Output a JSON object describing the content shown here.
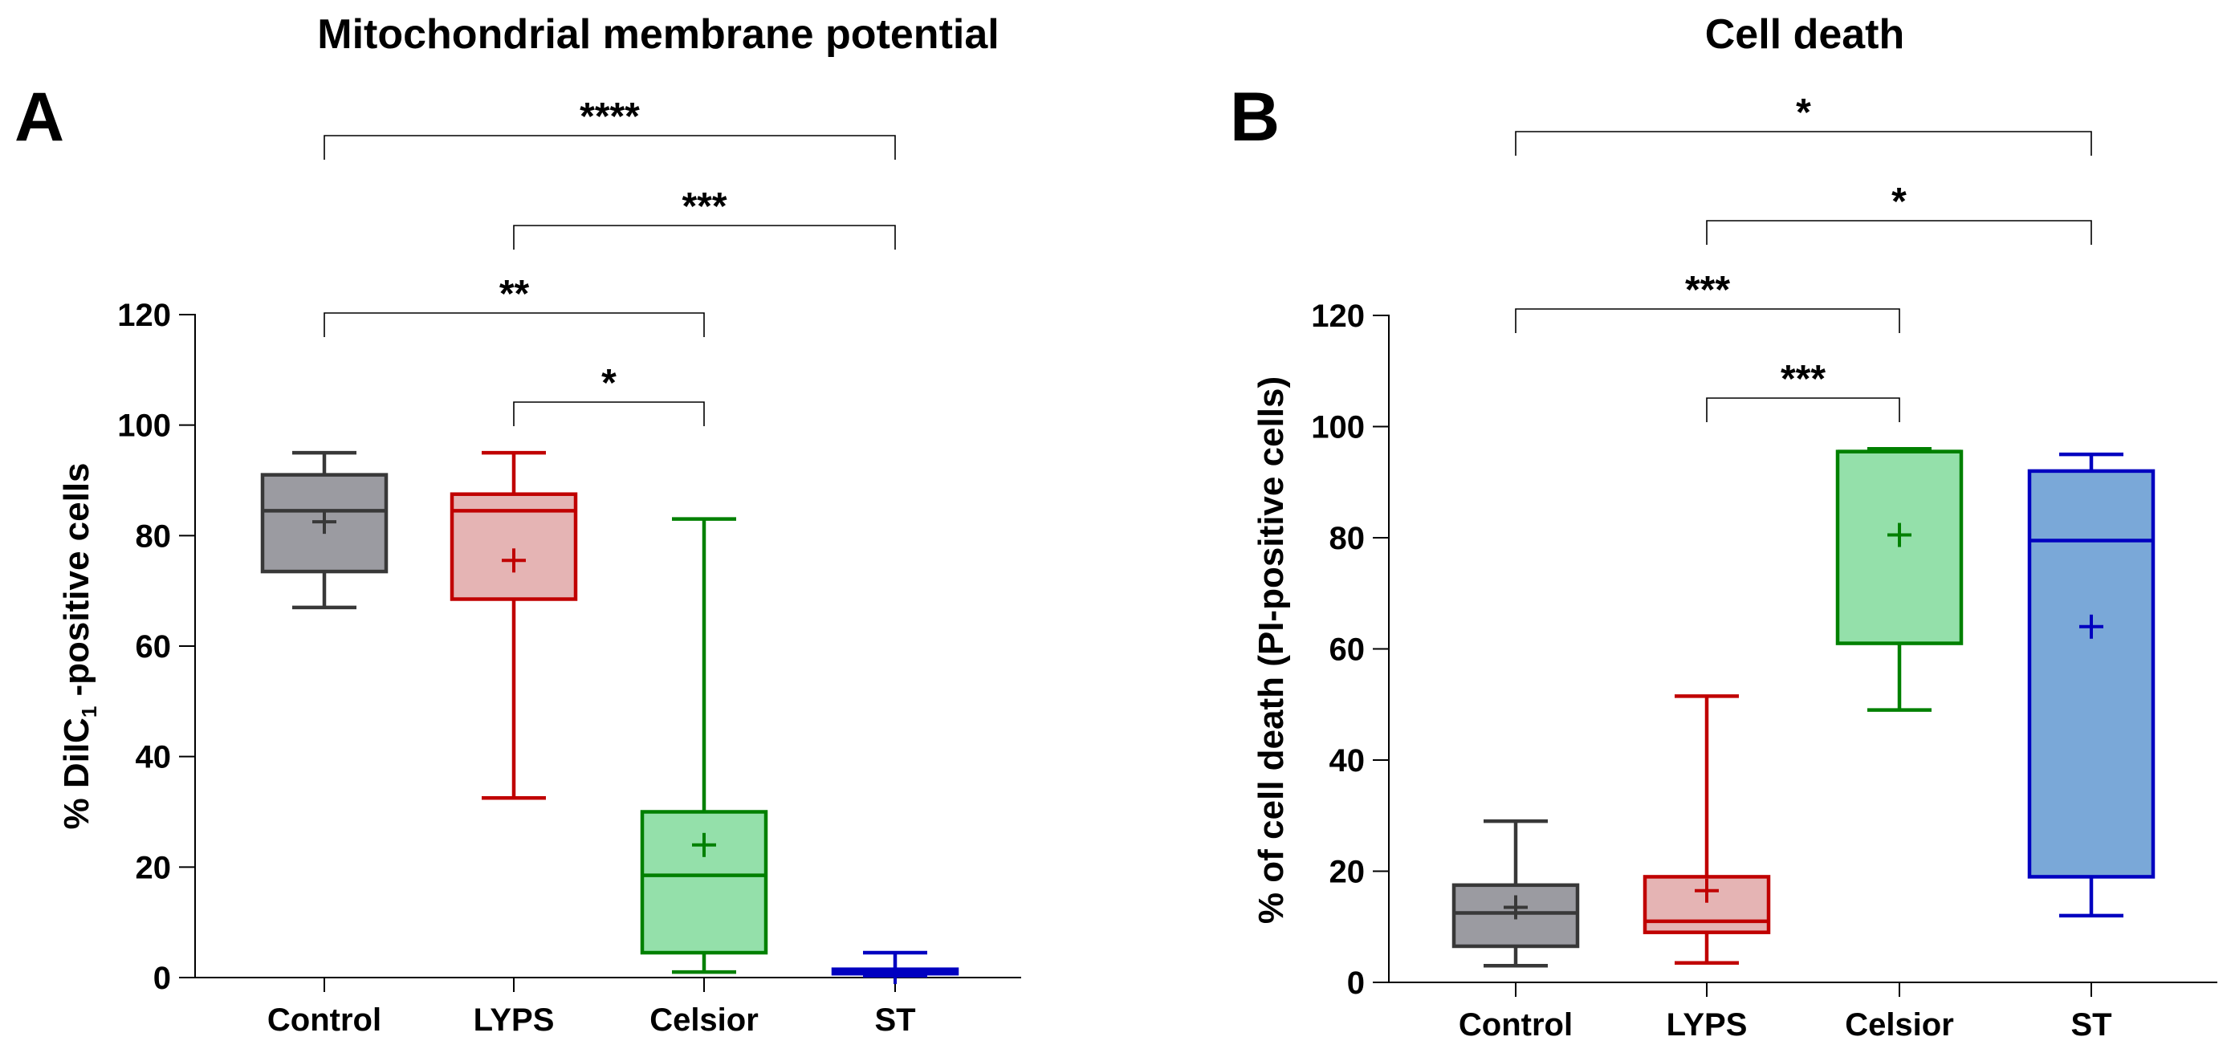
{
  "chart_data": [
    {
      "type": "box",
      "panel": "A",
      "title": "Mitochondrial membrane potential",
      "ylabel_main": "% DiIC",
      "ylabel_sub": "1",
      "ylabel_rest": " -positive cells",
      "xlabel": "",
      "ylim": [
        0,
        120
      ],
      "yticks": [
        "0",
        "20",
        "40",
        "60",
        "80",
        "100",
        "120"
      ],
      "categories": [
        "Control",
        "LYPS",
        "Celsior",
        "ST"
      ],
      "series": [
        {
          "category": "Control",
          "min": 67,
          "q1": 73.5,
          "median": 84.5,
          "q3": 91,
          "max": 95,
          "mean": 82.5,
          "stroke": "#383838",
          "fill": "#9b9ba1"
        },
        {
          "category": "LYPS",
          "min": 32.5,
          "q1": 68.5,
          "median": 84.5,
          "q3": 87.5,
          "max": 95,
          "mean": 75.5,
          "stroke": "#c00000",
          "fill": "#e5b4b4"
        },
        {
          "category": "Celsior",
          "min": 1,
          "q1": 4.5,
          "median": 18.5,
          "q3": 30,
          "max": 83,
          "mean": 24,
          "stroke": "#008000",
          "fill": "#94e0aa"
        },
        {
          "category": "ST",
          "min": 0.3,
          "q1": 0.7,
          "median": 1.0,
          "q3": 1.5,
          "max": 4.5,
          "mean": 1,
          "stroke": "#0000c0",
          "fill": "#7aa8d8"
        }
      ],
      "comparisons": [
        {
          "from": "Control",
          "to": "ST",
          "label": "****"
        },
        {
          "from": "LYPS",
          "to": "ST",
          "label": "***"
        },
        {
          "from": "Control",
          "to": "Celsior",
          "label": "**"
        },
        {
          "from": "LYPS",
          "to": "Celsior",
          "label": "*"
        }
      ]
    },
    {
      "type": "box",
      "panel": "B",
      "title": "Cell death",
      "ylabel_main": "% of cell death (PI-positive cells)",
      "ylabel_sub": "",
      "ylabel_rest": "",
      "xlabel": "",
      "ylim": [
        0,
        120
      ],
      "yticks": [
        "0",
        "20",
        "40",
        "60",
        "80",
        "100",
        "120"
      ],
      "categories": [
        "Control",
        "LYPS",
        "Celsior",
        "ST"
      ],
      "series": [
        {
          "category": "Control",
          "min": 3,
          "q1": 6.5,
          "median": 12.5,
          "q3": 17.5,
          "max": 29,
          "mean": 13.5,
          "stroke": "#383838",
          "fill": "#9b9ba1"
        },
        {
          "category": "LYPS",
          "min": 3.5,
          "q1": 9,
          "median": 11,
          "q3": 19,
          "max": 51.5,
          "mean": 16.5,
          "stroke": "#c00000",
          "fill": "#e5b4b4"
        },
        {
          "category": "Celsior",
          "min": 49,
          "q1": 61,
          "median": 95.5,
          "q3": 95.5,
          "max": 96,
          "mean": 80.5,
          "stroke": "#008000",
          "fill": "#94e0aa"
        },
        {
          "category": "ST",
          "min": 12,
          "q1": 19,
          "median": 79.5,
          "q3": 92,
          "max": 95,
          "mean": 64,
          "stroke": "#0000c0",
          "fill": "#7aa8d8"
        }
      ],
      "comparisons": [
        {
          "from": "Control",
          "to": "ST",
          "label": "*"
        },
        {
          "from": "LYPS",
          "to": "ST",
          "label": "*"
        },
        {
          "from": "Control",
          "to": "Celsior",
          "label": "***"
        },
        {
          "from": "LYPS",
          "to": "Celsior",
          "label": "***"
        }
      ]
    }
  ]
}
